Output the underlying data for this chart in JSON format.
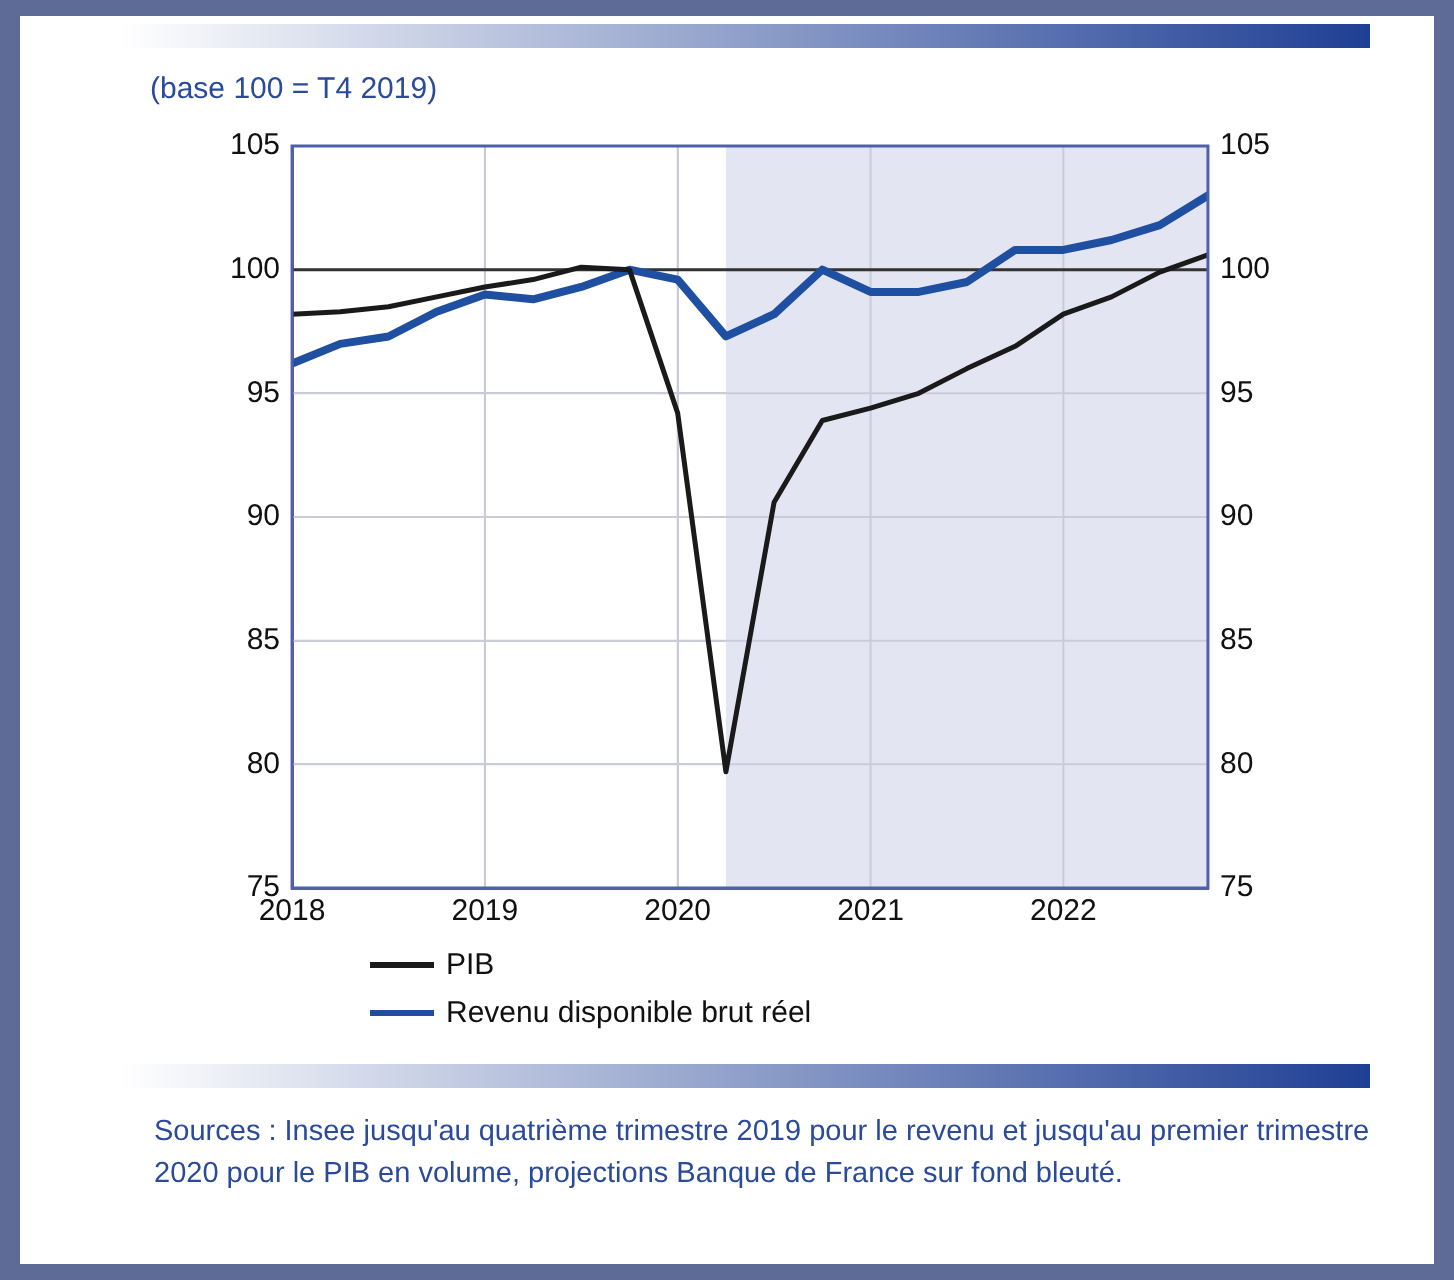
{
  "chart_data": {
    "type": "line",
    "title": "(base 100 = T4 2019)",
    "x": [
      2018,
      2018.25,
      2018.5,
      2018.75,
      2019,
      2019.25,
      2019.5,
      2019.75,
      2020,
      2020.25,
      2020.5,
      2020.75,
      2021,
      2021.25,
      2021.5,
      2021.75,
      2022,
      2022.25,
      2022.5,
      2022.75
    ],
    "series": [
      {
        "name": "PIB",
        "color": "#1a1a1a",
        "values": [
          98.2,
          98.3,
          98.5,
          98.9,
          99.3,
          99.6,
          100.1,
          100.0,
          94.2,
          79.7,
          90.6,
          93.9,
          94.4,
          95.0,
          96.0,
          96.9,
          98.2,
          98.9,
          99.9,
          100.6
        ]
      },
      {
        "name": "Revenu disponible brut réel",
        "color": "#1f4fa0",
        "values": [
          96.2,
          97.0,
          97.3,
          98.3,
          99.0,
          98.8,
          99.3,
          100.0,
          99.6,
          97.3,
          98.2,
          100.0,
          99.1,
          99.1,
          99.5,
          100.8,
          100.8,
          101.2,
          101.8,
          103.0
        ]
      }
    ],
    "xlim": [
      2018,
      2022.75
    ],
    "xticks": [
      2018,
      2019,
      2020,
      2021,
      2022
    ],
    "ylim": [
      75,
      105
    ],
    "yticks": [
      75,
      80,
      85,
      90,
      95,
      100,
      105
    ],
    "y2lim": [
      75,
      105
    ],
    "y2ticks": [
      75,
      80,
      85,
      90,
      95,
      100,
      105
    ],
    "ref_lines": [
      {
        "axis": "y",
        "value": 100,
        "label": null,
        "color": "#333333"
      }
    ],
    "bands": [
      {
        "axis": "x",
        "from": 2020.25,
        "to": 2022.75,
        "label": null,
        "color": "#e4e5f3"
      }
    ],
    "grid": true,
    "legend": "bottom",
    "marker": "none",
    "line_style": "solid",
    "annotations": [
      "Sources : Insee jusqu'au quatrième trimestre 2019 pour le revenu et jusqu'au premier trimestre 2020 pour le PIB en volume, projections Banque de France sur fond bleuté."
    ]
  }
}
